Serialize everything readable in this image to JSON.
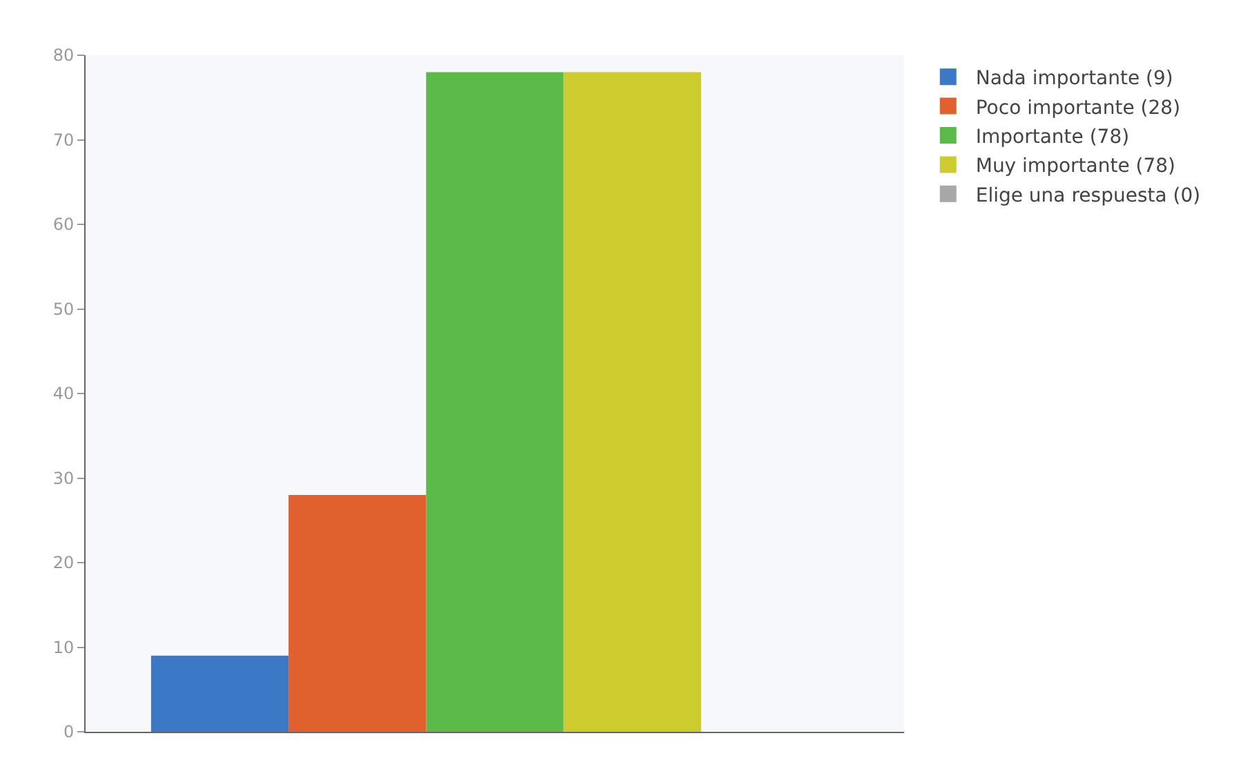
{
  "chart_data": {
    "type": "bar",
    "categories": [
      null
    ],
    "series": [
      {
        "name": "Nada importante (9)",
        "color": "#3b78c6",
        "values": [
          9
        ]
      },
      {
        "name": "Poco importante (28)",
        "color": "#e0602e",
        "values": [
          28
        ]
      },
      {
        "name": "Importante (78)",
        "color": "#5cba48",
        "values": [
          78
        ]
      },
      {
        "name": "Muy importante (78)",
        "color": "#cccc2e",
        "values": [
          78
        ]
      },
      {
        "name": "Elige una respuesta (0)",
        "color": "#a8a8a8",
        "values": [
          0
        ]
      }
    ],
    "ylim": [
      0,
      80
    ],
    "yticks": [
      0,
      10,
      20,
      30,
      40,
      50,
      60,
      70,
      80
    ],
    "grid": false,
    "legend": "top right"
  }
}
